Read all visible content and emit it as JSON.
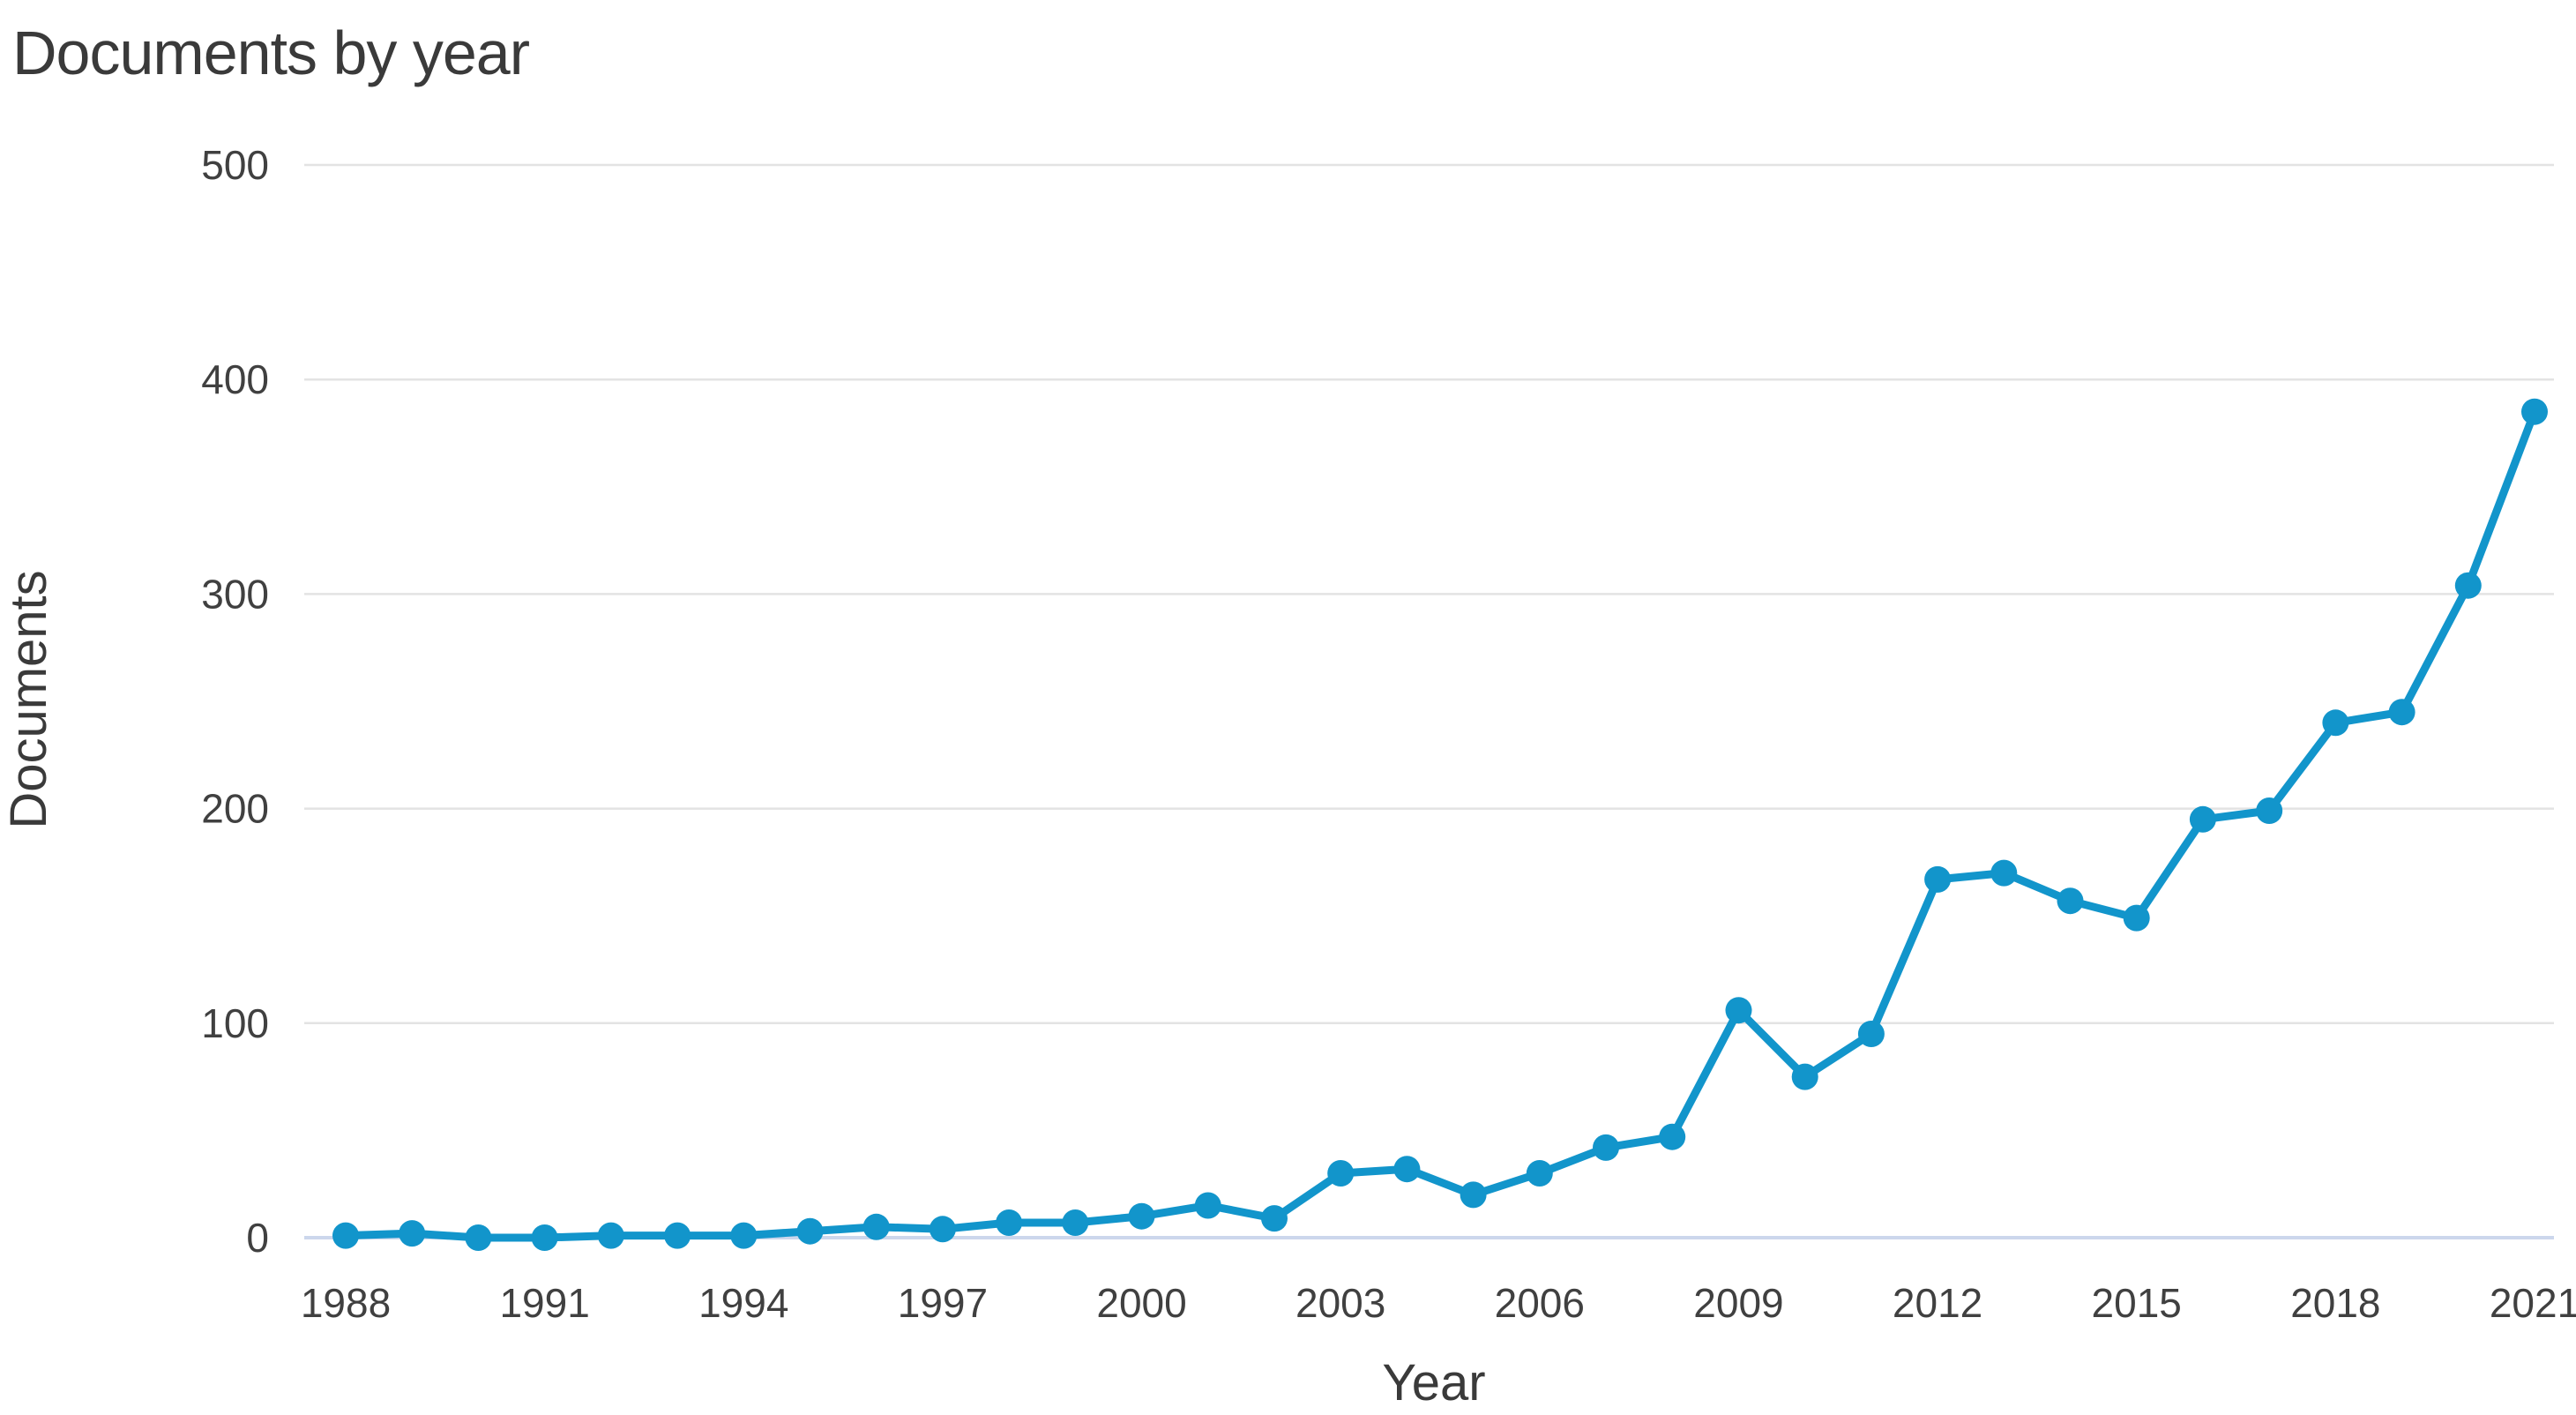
{
  "chart_data": {
    "type": "line",
    "title": "Documents by year",
    "xlabel": "Year",
    "ylabel": "Documents",
    "x": [
      1988,
      1989,
      1990,
      1991,
      1992,
      1993,
      1994,
      1995,
      1996,
      1997,
      1998,
      1999,
      2000,
      2001,
      2002,
      2003,
      2004,
      2005,
      2006,
      2007,
      2008,
      2009,
      2010,
      2011,
      2012,
      2013,
      2014,
      2015,
      2016,
      2017,
      2018,
      2019,
      2020,
      2021
    ],
    "series": [
      {
        "name": "Documents",
        "values": [
          1,
          2,
          0,
          0,
          1,
          1,
          1,
          3,
          5,
          4,
          7,
          7,
          10,
          15,
          9,
          30,
          32,
          20,
          30,
          42,
          47,
          106,
          75,
          95,
          167,
          170,
          157,
          149,
          195,
          199,
          240,
          245,
          304,
          385
        ]
      }
    ],
    "xlim": [
      1988,
      2021
    ],
    "ylim": [
      0,
      500
    ],
    "xticks": [
      1988,
      1991,
      1994,
      1997,
      2000,
      2003,
      2006,
      2009,
      2012,
      2015,
      2018,
      2021
    ],
    "yticks": [
      0,
      100,
      200,
      300,
      400,
      500
    ],
    "grid": "horizontal",
    "legend": "none",
    "colors": {
      "line": "#1295cb",
      "marker": "#1295cb",
      "gridline": "#e3e3e3",
      "zero_axis_line": "#ccd7ec",
      "text": "#3a3a3a",
      "tick_text": "#404040",
      "background": "#ffffff"
    }
  }
}
